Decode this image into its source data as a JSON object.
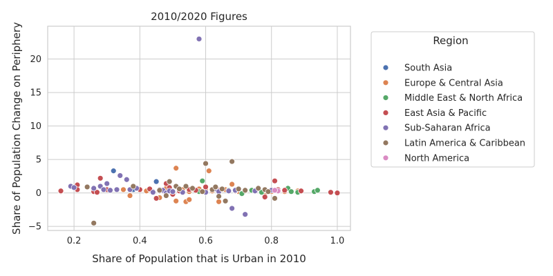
{
  "chart_data": {
    "type": "scatter",
    "title": "2010/2020 Figures",
    "xlabel": "Share of Population that is Urban in 2010",
    "ylabel": "Share of Population Change on Periphery",
    "xlim": [
      0.12,
      1.04
    ],
    "ylim": [
      -5.6,
      24.9
    ],
    "xticks": [
      0.2,
      0.4,
      0.6,
      0.8,
      1.0
    ],
    "xtick_labels": [
      "0.2",
      "0.4",
      "0.6",
      "0.8",
      "1.0"
    ],
    "yticks": [
      -5,
      0,
      5,
      10,
      15,
      20
    ],
    "ytick_labels": [
      "−5",
      "0",
      "5",
      "10",
      "15",
      "20"
    ],
    "grid": true,
    "legend": {
      "title": "Region",
      "placement": "outside-right"
    },
    "series": [
      {
        "name": "South Asia",
        "color": "#4c72b0",
        "points": [
          [
            0.32,
            3.3
          ],
          [
            0.45,
            1.7
          ],
          [
            0.44,
            0.2
          ],
          [
            0.46,
            0.3
          ],
          [
            0.38,
            0.5
          ],
          [
            0.5,
            0.3
          ]
        ]
      },
      {
        "name": "Europe & Central Asia",
        "color": "#dd8452",
        "points": [
          [
            0.35,
            0.5
          ],
          [
            0.37,
            -0.4
          ],
          [
            0.42,
            0.3
          ],
          [
            0.46,
            -0.7
          ],
          [
            0.48,
            0.7
          ],
          [
            0.5,
            0.2
          ],
          [
            0.51,
            -1.2
          ],
          [
            0.51,
            3.7
          ],
          [
            0.53,
            0.5
          ],
          [
            0.54,
            -1.3
          ],
          [
            0.55,
            -1.0
          ],
          [
            0.56,
            0.6
          ],
          [
            0.58,
            0.6
          ],
          [
            0.6,
            0.4
          ],
          [
            0.61,
            3.3
          ],
          [
            0.62,
            0.3
          ],
          [
            0.64,
            -1.3
          ],
          [
            0.66,
            0.5
          ],
          [
            0.68,
            1.3
          ],
          [
            0.7,
            0.2
          ],
          [
            0.72,
            0.3
          ],
          [
            0.78,
            -0.4
          ],
          [
            0.8,
            0.2
          ],
          [
            0.84,
            0.2
          ],
          [
            0.88,
            0.3
          ],
          [
            0.55,
            0.2
          ]
        ]
      },
      {
        "name": "Middle East & North Africa",
        "color": "#55a868",
        "points": [
          [
            0.58,
            0.2
          ],
          [
            0.59,
            1.8
          ],
          [
            0.67,
            0.4
          ],
          [
            0.71,
            -0.1
          ],
          [
            0.74,
            0.4
          ],
          [
            0.77,
            0.1
          ],
          [
            0.82,
            0.3
          ],
          [
            0.85,
            0.7
          ],
          [
            0.86,
            0.2
          ],
          [
            0.88,
            0.1
          ],
          [
            0.93,
            0.2
          ],
          [
            0.94,
            0.4
          ]
        ]
      },
      {
        "name": "East Asia & Pacific",
        "color": "#c44e52",
        "points": [
          [
            0.16,
            0.2
          ],
          [
            0.16,
            0.3
          ],
          [
            0.21,
            1.2
          ],
          [
            0.21,
            0.5
          ],
          [
            0.26,
            0.2
          ],
          [
            0.27,
            0.1
          ],
          [
            0.28,
            2.2
          ],
          [
            0.3,
            0.5
          ],
          [
            0.4,
            0.5
          ],
          [
            0.43,
            0.6
          ],
          [
            0.45,
            -0.8
          ],
          [
            0.47,
            0.3
          ],
          [
            0.48,
            1.4
          ],
          [
            0.49,
            0.8
          ],
          [
            0.5,
            -0.2
          ],
          [
            0.52,
            0.3
          ],
          [
            0.55,
            0.5
          ],
          [
            0.57,
            0.4
          ],
          [
            0.6,
            0.9
          ],
          [
            0.64,
            0.4
          ],
          [
            0.69,
            0.3
          ],
          [
            0.78,
            -0.6
          ],
          [
            0.81,
            1.8
          ],
          [
            0.82,
            0.5
          ],
          [
            0.84,
            0.4
          ],
          [
            0.89,
            0.3
          ],
          [
            0.98,
            0.1
          ],
          [
            1.0,
            0.0
          ]
        ]
      },
      {
        "name": "Sub-Saharan Africa",
        "color": "#8172b3",
        "points": [
          [
            0.19,
            1.0
          ],
          [
            0.2,
            0.8
          ],
          [
            0.26,
            0.7
          ],
          [
            0.28,
            1.0
          ],
          [
            0.29,
            0.5
          ],
          [
            0.3,
            1.4
          ],
          [
            0.31,
            0.4
          ],
          [
            0.33,
            0.5
          ],
          [
            0.34,
            2.6
          ],
          [
            0.36,
            2.0
          ],
          [
            0.37,
            0.5
          ],
          [
            0.39,
            0.7
          ],
          [
            0.44,
            0.1
          ],
          [
            0.46,
            0.5
          ],
          [
            0.47,
            0.4
          ],
          [
            0.48,
            0.0
          ],
          [
            0.49,
            0.3
          ],
          [
            0.5,
            0.2
          ],
          [
            0.53,
            0.1
          ],
          [
            0.58,
            23.0
          ],
          [
            0.6,
            0.1
          ],
          [
            0.63,
            0.6
          ],
          [
            0.64,
            0.2
          ],
          [
            0.67,
            0.3
          ],
          [
            0.68,
            -2.3
          ],
          [
            0.69,
            0.4
          ],
          [
            0.72,
            -3.2
          ],
          [
            0.75,
            0.3
          ],
          [
            0.8,
            0.4
          ]
        ]
      },
      {
        "name": "Latin America & Caribbean",
        "color": "#937860",
        "points": [
          [
            0.24,
            0.9
          ],
          [
            0.26,
            -4.5
          ],
          [
            0.38,
            1.0
          ],
          [
            0.46,
            0.4
          ],
          [
            0.48,
            -0.4
          ],
          [
            0.49,
            1.7
          ],
          [
            0.51,
            1.0
          ],
          [
            0.52,
            0.6
          ],
          [
            0.54,
            1.0
          ],
          [
            0.56,
            0.7
          ],
          [
            0.59,
            0.2
          ],
          [
            0.6,
            4.4
          ],
          [
            0.62,
            0.5
          ],
          [
            0.63,
            0.9
          ],
          [
            0.64,
            -0.5
          ],
          [
            0.66,
            -1.2
          ],
          [
            0.68,
            4.7
          ],
          [
            0.7,
            0.6
          ],
          [
            0.72,
            0.4
          ],
          [
            0.76,
            0.7
          ],
          [
            0.78,
            0.5
          ],
          [
            0.79,
            0.2
          ],
          [
            0.81,
            -0.8
          ],
          [
            0.65,
            0.6
          ]
        ]
      },
      {
        "name": "North America",
        "color": "#da8bc3",
        "points": [
          [
            0.82,
            0.3
          ],
          [
            0.81,
            0.4
          ]
        ]
      }
    ]
  }
}
